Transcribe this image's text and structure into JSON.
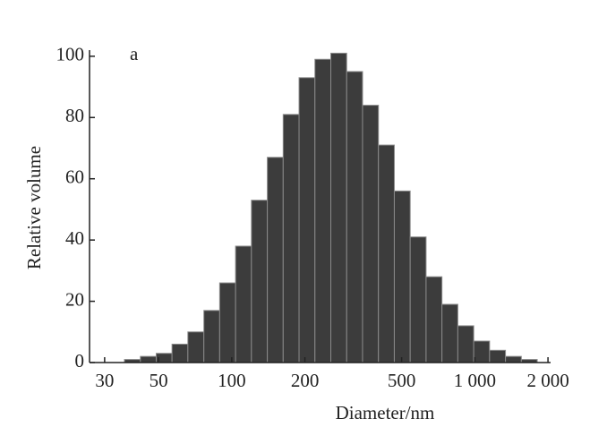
{
  "chart_data": {
    "type": "histogram",
    "annotation": "a",
    "x_label": "Diameter/nm",
    "y_label": "Relative volume",
    "log_x": true,
    "color": "#3c3c3c",
    "edge_color": "#8a8a8a",
    "bins": [
      36.2,
      42.1,
      48.9,
      56.8,
      66.0,
      76.8,
      89.2,
      103.7,
      120.5,
      140.1,
      162.8,
      189.2,
      219.9,
      255.6,
      297.1,
      345.3,
      401.4,
      466.5,
      542.2,
      630.2,
      732.5,
      851.4,
      989.6,
      1150,
      1337,
      1554,
      1806
    ],
    "values": [
      1,
      2,
      3,
      6,
      10,
      17,
      26,
      38,
      53,
      67,
      81,
      93,
      99,
      101,
      95,
      84,
      71,
      56,
      41,
      28,
      19,
      12,
      7,
      4,
      2,
      1
    ],
    "xlim": [
      26,
      2050
    ],
    "xticks": [
      30,
      50,
      100,
      200,
      500,
      {
        "value": 1000,
        "label": "1 000"
      },
      {
        "value": 2000,
        "label": "2 000"
      }
    ],
    "ylim": [
      0,
      102
    ],
    "yticks": [
      0,
      20,
      40,
      60,
      80,
      100
    ]
  }
}
